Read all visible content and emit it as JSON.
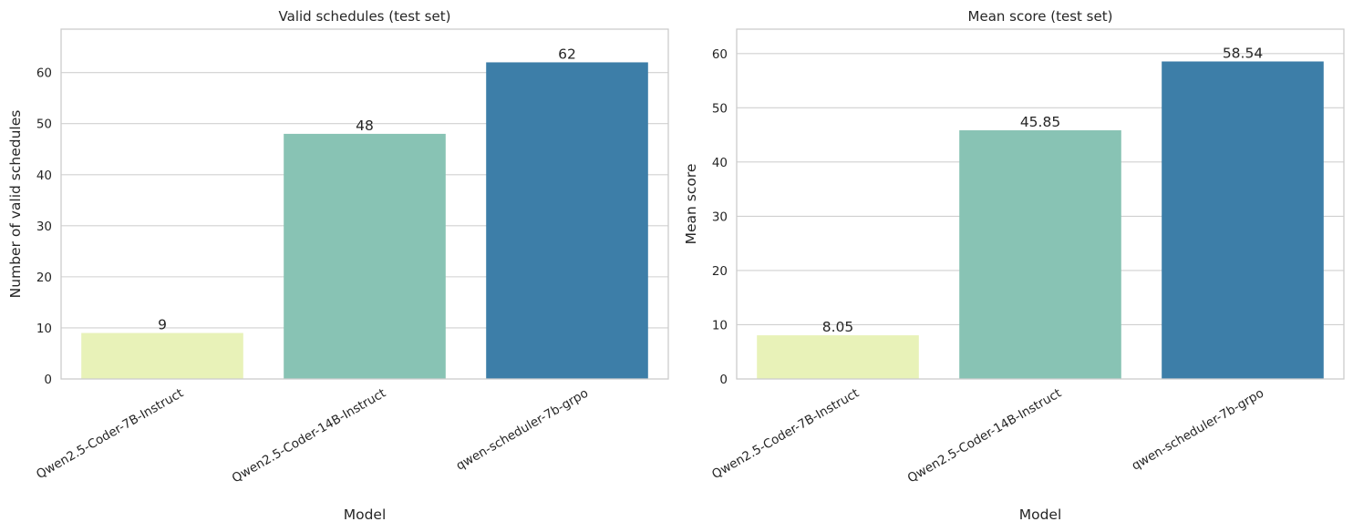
{
  "chart_data": [
    {
      "type": "bar",
      "title": "Valid schedules (test set)",
      "xlabel": "Model",
      "ylabel": "Number of valid schedules",
      "categories": [
        "Qwen2.5-Coder-7B-Instruct",
        "Qwen2.5-Coder-14B-Instruct",
        "qwen-scheduler-7b-grpo"
      ],
      "values": [
        9,
        48,
        62
      ],
      "value_labels": [
        "9",
        "48",
        "62"
      ],
      "colors": [
        "#e8f2b8",
        "#88c3b4",
        "#3d7ea8"
      ],
      "yticks": [
        0,
        10,
        20,
        30,
        40,
        50,
        60
      ],
      "ylim": [
        0,
        68.5
      ],
      "grid": true
    },
    {
      "type": "bar",
      "title": "Mean score (test set)",
      "xlabel": "Model",
      "ylabel": "Mean score",
      "categories": [
        "Qwen2.5-Coder-7B-Instruct",
        "Qwen2.5-Coder-14B-Instruct",
        "qwen-scheduler-7b-grpo"
      ],
      "values": [
        8.05,
        45.85,
        58.54
      ],
      "value_labels": [
        "8.05",
        "45.85",
        "58.54"
      ],
      "colors": [
        "#e8f2b8",
        "#88c3b4",
        "#3d7ea8"
      ],
      "yticks": [
        0,
        10,
        20,
        30,
        40,
        50,
        60
      ],
      "ylim": [
        0,
        64.5
      ],
      "grid": true
    }
  ]
}
